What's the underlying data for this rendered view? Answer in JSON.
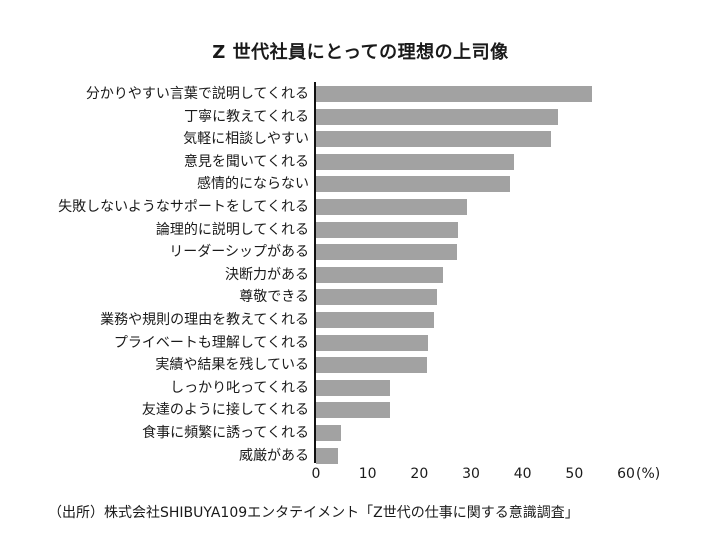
{
  "chart_data": {
    "type": "bar",
    "orientation": "horizontal",
    "title": "Z 世代社員にとっての理想の上司像",
    "xlabel": "",
    "ylabel": "",
    "unit": "(%)",
    "xlim": [
      0,
      60
    ],
    "xticks": [
      "0",
      "10",
      "20",
      "30",
      "40",
      "50",
      "60"
    ],
    "grid": false,
    "legend": null,
    "categories": [
      "分かりやすい言葉で説明してくれる",
      "丁寧に教えてくれる",
      "気軽に相談しやすい",
      "意見を聞いてくれる",
      "感情的にならない",
      "失敗しないようなサポートをしてくれる",
      "論理的に説明してくれる",
      "リーダーシップがある",
      "決断力がある",
      "尊敬できる",
      "業務や規則の理由を教えてくれる",
      "プライベートも理解してくれる",
      "実績や結果を残している",
      "しっかり叱ってくれる",
      "友達のように接してくれる",
      "食事に頻繁に誘ってくれる",
      "威厳がある"
    ],
    "values": [
      53.4,
      46.8,
      45.4,
      38.3,
      37.5,
      29.2,
      27.5,
      27.3,
      24.6,
      23.4,
      22.8,
      21.7,
      21.5,
      14.3,
      14.3,
      4.8,
      4.3
    ],
    "bar_color": "#a2a2a2",
    "source": "（出所）株式会社SHIBUYA109エンタテイメント「Z世代の仕事に関する意識調査」"
  }
}
